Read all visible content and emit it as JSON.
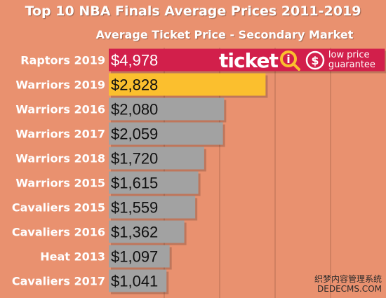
{
  "chart_data": {
    "type": "bar",
    "orientation": "horizontal",
    "title": "Top 10 NBA Finals Average Prices 2011-2019",
    "subtitle": "Average Ticket Price - Secondary Market",
    "categories": [
      "Raptors 2019",
      "Warriors 2019",
      "Warriors 2016",
      "Warriors 2017",
      "Warriors 2018",
      "Warriors 2015",
      "Cavaliers 2015",
      "Cavaliers 2016",
      "Heat 2013",
      "Cavaliers 2017"
    ],
    "values": [
      4978,
      2828,
      2080,
      2059,
      1720,
      1615,
      1559,
      1362,
      1097,
      1041
    ],
    "value_labels": [
      "$4,978",
      "$2,828",
      "$2,080",
      "$2,059",
      "$1,720",
      "$1,615",
      "$1,559",
      "$1,362",
      "$1,097",
      "$1,041"
    ],
    "xlim": [
      0,
      5000
    ],
    "grid": true,
    "colors": {
      "background": "#e9916f",
      "highlight_first": "#d21f4b",
      "highlight_second": "#fbbf2e",
      "default_bar": "#a2a2a2",
      "gridline": "#c87b5d"
    }
  },
  "logo": {
    "word": "ticket",
    "letter": "i",
    "tagline_line1": "low price",
    "tagline_line2": "guarantee"
  },
  "watermark": {
    "line1": "织梦内容管理系统",
    "line2": "DEDECMS.COM"
  }
}
